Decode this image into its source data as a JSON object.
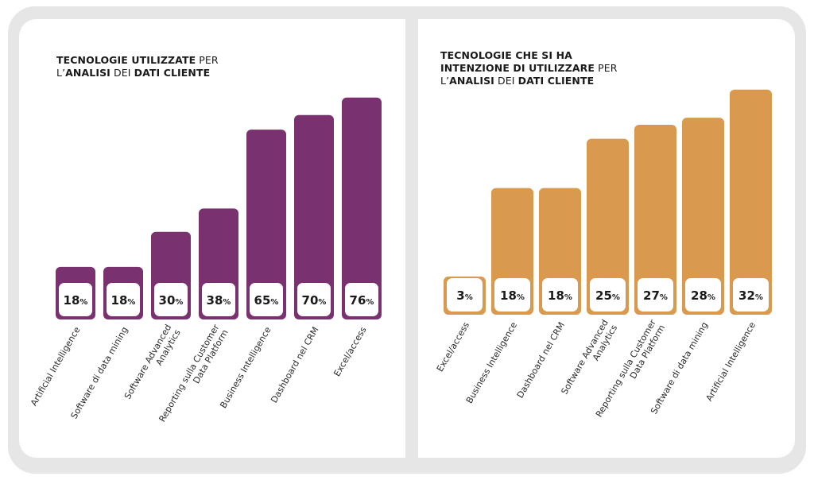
{
  "chart_data": [
    {
      "type": "bar",
      "title_parts": [
        {
          "text": "TECNOLOGIE UTILIZZATE",
          "bold": true
        },
        {
          "text": " PER",
          "bold": false,
          "br": true
        },
        {
          "text": "L’",
          "bold": false
        },
        {
          "text": "ANALISI",
          "bold": true
        },
        {
          "text": " DEI ",
          "bold": false
        },
        {
          "text": "DATI CLIENTE",
          "bold": true
        }
      ],
      "categories": [
        "Artificial Intelligence",
        "Software di data mining",
        "Software Advanced|Analytics",
        "Reporting sulla Customer|Data Platform",
        "Business Intelligence",
        "Dashboard nel CRM",
        "Excel/access"
      ],
      "values": [
        18,
        18,
        30,
        38,
        65,
        70,
        76
      ],
      "unit": "%",
      "color": "#7a3170",
      "label_bg": "#ffffff",
      "ylim": [
        0,
        80
      ]
    },
    {
      "type": "bar",
      "title_parts": [
        {
          "text": "TECNOLOGIE CHE SI HA",
          "bold": true,
          "br": true
        },
        {
          "text": "INTENZIONE DI UTILIZZARE",
          "bold": true
        },
        {
          "text": " PER",
          "bold": false,
          "br": true
        },
        {
          "text": "L’",
          "bold": false
        },
        {
          "text": "ANALISI",
          "bold": true
        },
        {
          "text": " DEI ",
          "bold": false
        },
        {
          "text": "DATI CLIENTE",
          "bold": true
        }
      ],
      "categories": [
        "Excel/access",
        "Business Intelligence",
        "Dashboard nel CRM",
        "Software Advanced|Analytics",
        "Reporting sulla Customer|Data Platform",
        "Software di data mining",
        "Artificial Intelligence"
      ],
      "values": [
        3,
        18,
        18,
        25,
        27,
        28,
        32
      ],
      "unit": "%",
      "color": "#d9994e",
      "label_bg": "#ffffff",
      "ylim": [
        0,
        34
      ]
    }
  ]
}
